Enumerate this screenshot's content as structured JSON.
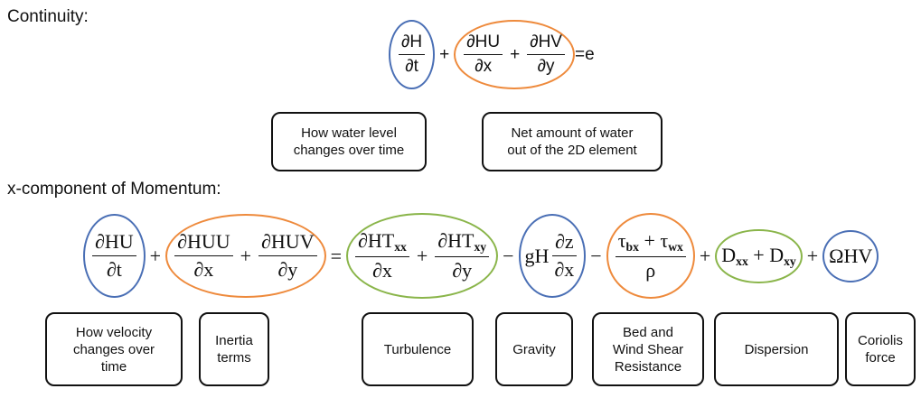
{
  "continuity": {
    "heading": "Continuity:",
    "equation": [
      {
        "num": [
          "∂H"
        ],
        "den": [
          "∂t"
        ]
      },
      "+",
      {
        "num": [
          "∂HU"
        ],
        "den": [
          "∂x"
        ]
      },
      "+",
      {
        "num": [
          "∂HV"
        ],
        "den": [
          "∂y"
        ]
      },
      "=e"
    ],
    "labels": [
      [
        "How water level",
        "changes over time"
      ],
      [
        "Net amount of water",
        "out of the 2D element"
      ]
    ]
  },
  "momentum": {
    "heading": "x-component of Momentum:",
    "equation": [
      {
        "num": [
          "∂HU"
        ],
        "den": [
          "∂t"
        ]
      },
      "+",
      {
        "num": [
          "∂HUU"
        ],
        "den": [
          "∂x"
        ]
      },
      "+",
      {
        "num": [
          "∂HUV"
        ],
        "den": [
          "∂y"
        ]
      },
      "=",
      {
        "num": [
          "∂HT",
          "xx"
        ],
        "den": [
          "∂x"
        ]
      },
      "+",
      {
        "num": [
          "∂HT",
          "xy"
        ],
        "den": [
          "∂y"
        ]
      },
      "−",
      "gH",
      {
        "num": [
          "∂z"
        ],
        "den": [
          "∂x"
        ]
      },
      "−",
      {
        "num": [
          "τ",
          "bx",
          " + τ",
          "wx"
        ],
        "den": [
          "ρ"
        ]
      },
      "+",
      {
        "expr": [
          "D",
          "xx",
          " + D",
          "xy"
        ]
      },
      "+",
      "ΩHV"
    ],
    "labels": [
      [
        "How velocity",
        "changes over",
        "time"
      ],
      [
        "Inertia",
        "terms"
      ],
      [
        "Turbulence"
      ],
      [
        "Gravity"
      ],
      [
        "Bed and",
        "Wind Shear",
        "Resistance"
      ],
      [
        "Dispersion"
      ],
      [
        "Coriolis",
        "force"
      ]
    ]
  }
}
